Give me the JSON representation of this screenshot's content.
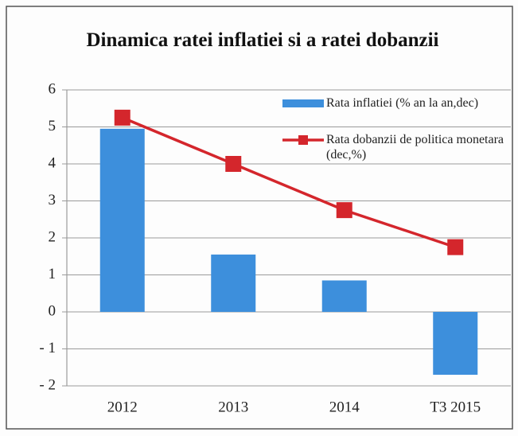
{
  "chart_data": {
    "type": "bar",
    "title": "Dinamica ratei inflatiei si a ratei dobanzii",
    "categories": [
      "2012",
      "2013",
      "2014",
      "T3 2015"
    ],
    "series": [
      {
        "name": "Rata inflatiei (% an la an,dec)",
        "type": "bar",
        "color": "#3d8fdc",
        "values": [
          4.95,
          1.55,
          0.85,
          -1.7
        ]
      },
      {
        "name": "Rata dobanzii de politica monetara (dec,%)",
        "type": "line",
        "color": "#d4262c",
        "values": [
          5.25,
          4.0,
          2.75,
          1.75
        ]
      }
    ],
    "ylim": [
      -2,
      6
    ],
    "yticks": [
      {
        "value": -2,
        "label": "- 2"
      },
      {
        "value": -1,
        "label": "- 1"
      },
      0,
      1,
      2,
      3,
      4,
      5,
      6
    ],
    "grid": true,
    "legend": "top-right"
  }
}
